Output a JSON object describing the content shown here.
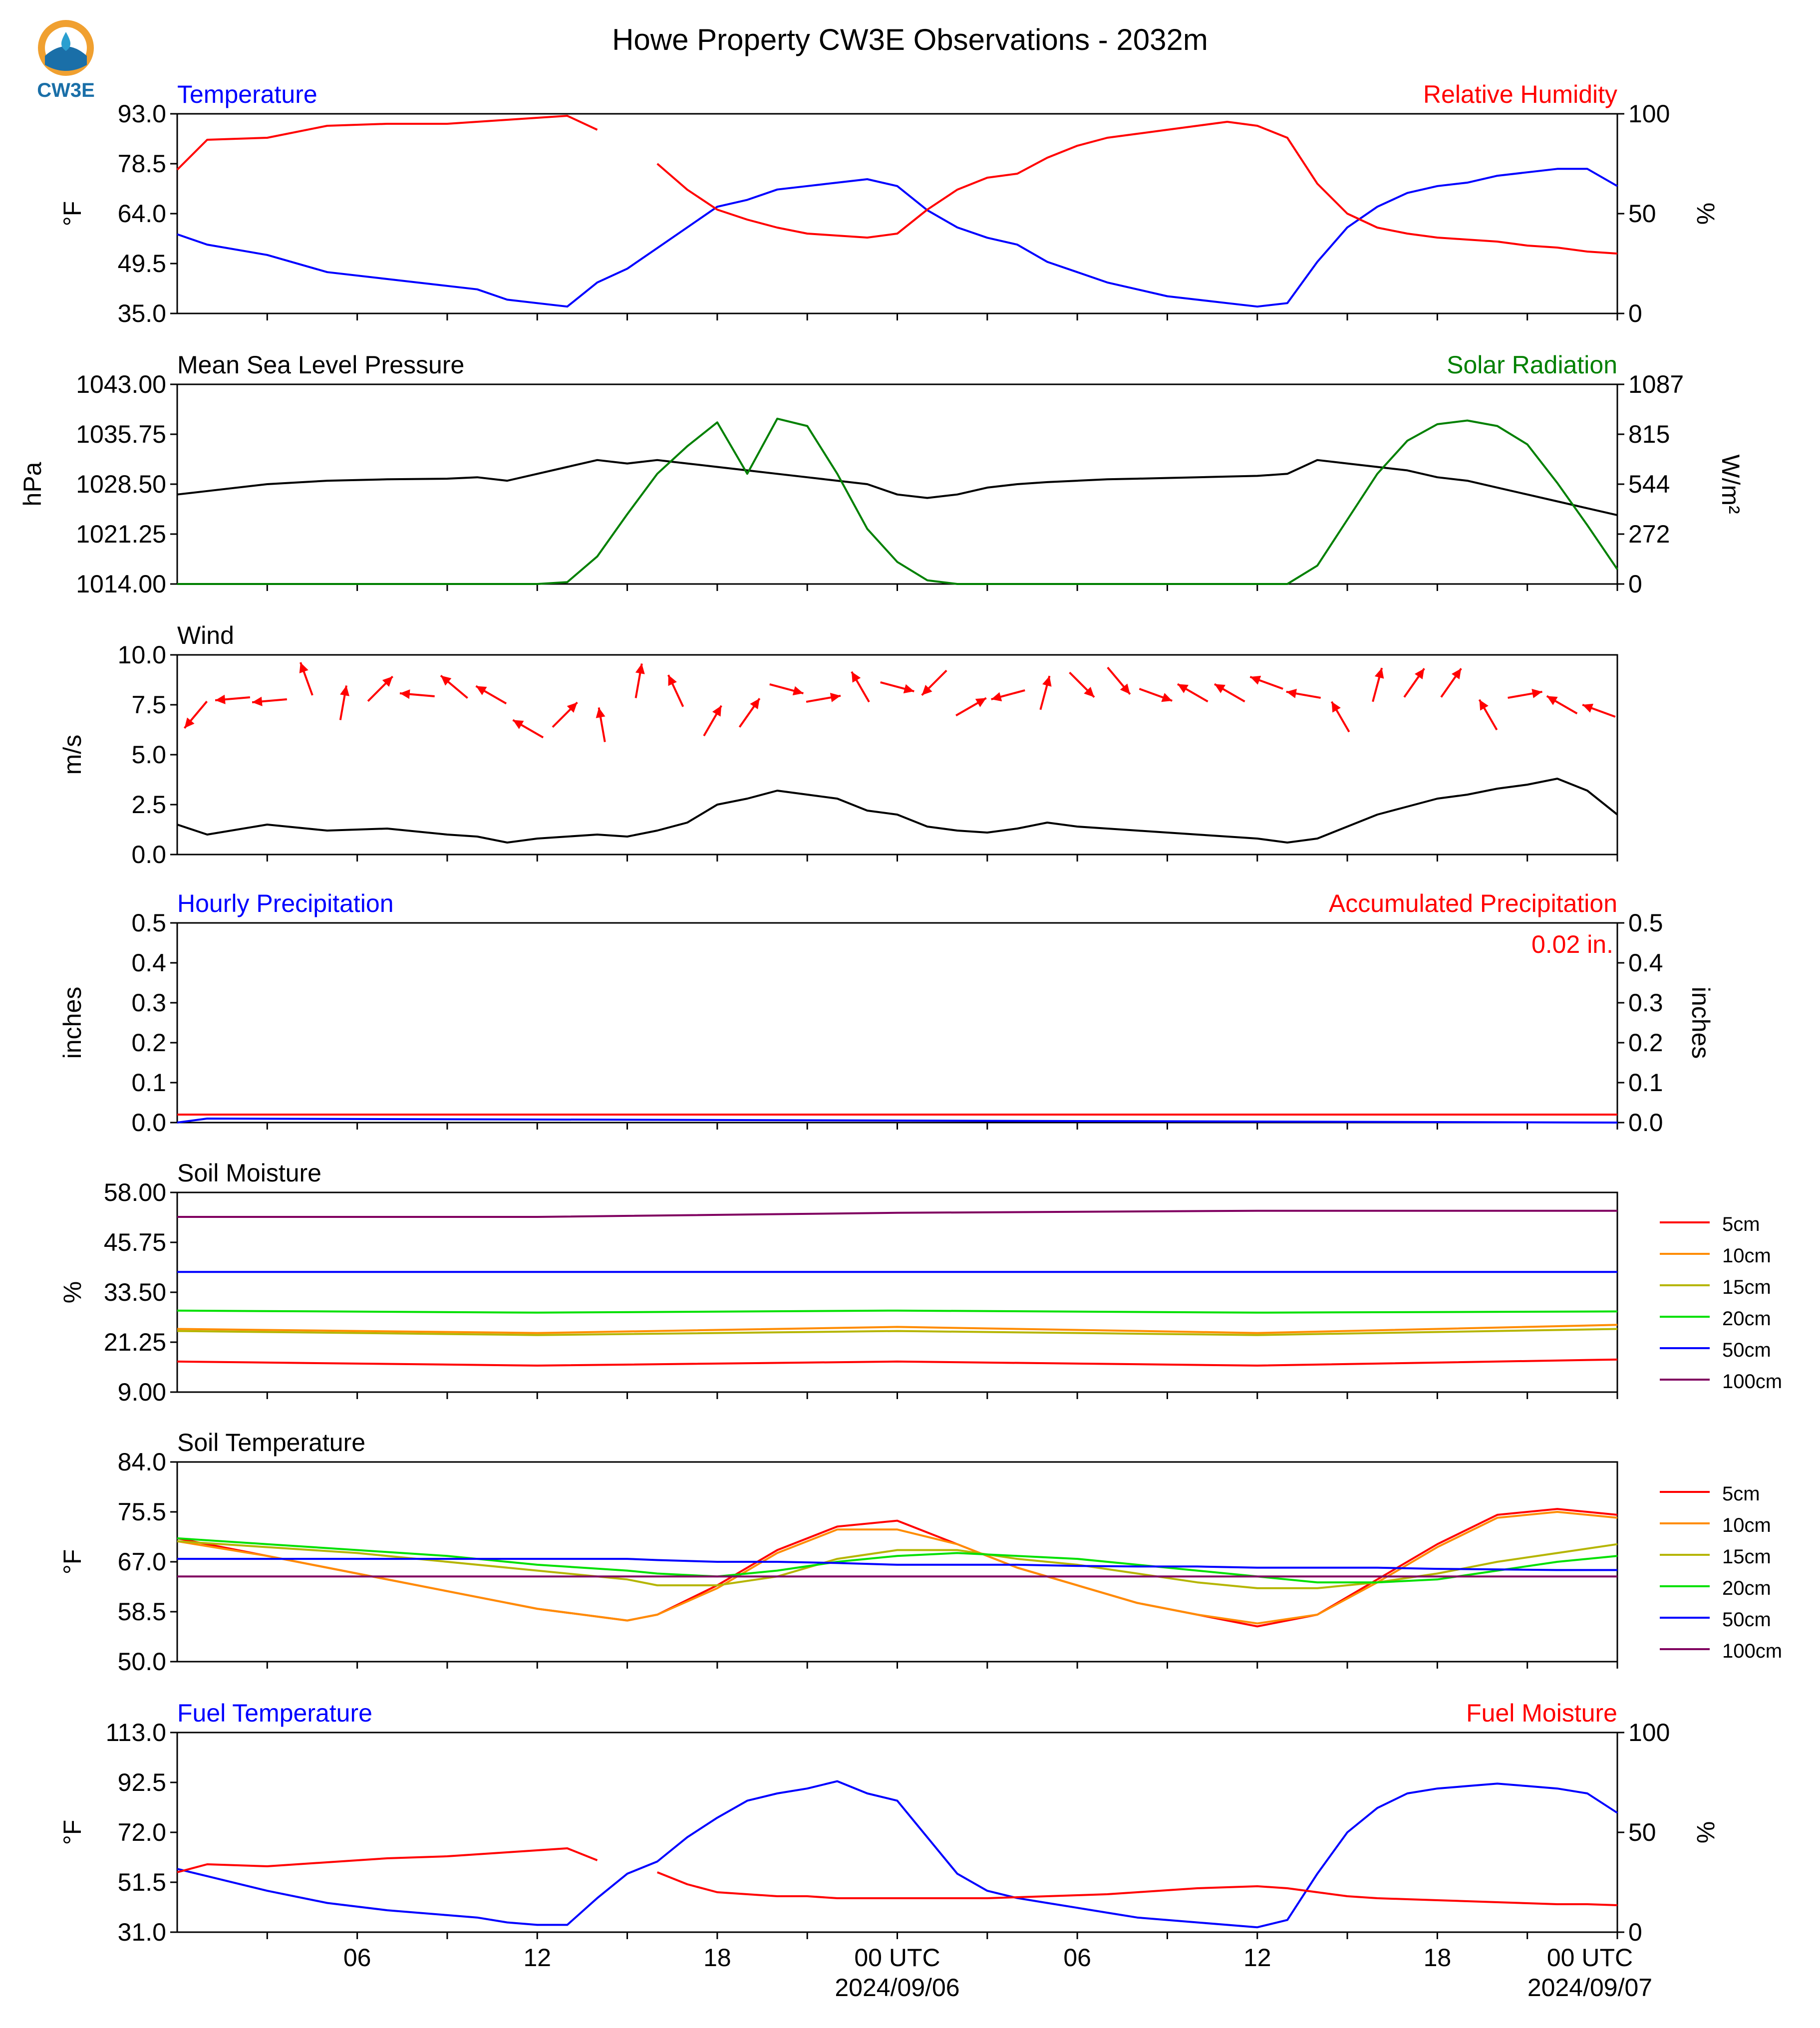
{
  "title": "Howe Property CW3E Observations - 2032m",
  "logo": {
    "text": "CW3E",
    "colors": {
      "orange": "#f0a030",
      "blue": "#1a6fa8",
      "teal": "#2a9fd0"
    }
  },
  "colors": {
    "blue": "#0000ff",
    "red": "#ff0000",
    "black": "#000000",
    "green": "#008000"
  },
  "x_axis": {
    "tick_labels": [
      "06",
      "12",
      "18",
      "00 UTC",
      "06",
      "12",
      "18",
      "00 UTC"
    ],
    "date_labels": [
      "2024/09/06",
      "2024/09/07"
    ]
  },
  "chart_data": [
    {
      "type": "line",
      "panel": "temperature",
      "left_title": "Temperature",
      "right_title": "Relative Humidity",
      "ylabel": "°F",
      "y2label": "%",
      "ylim": [
        35.0,
        93.0
      ],
      "y2lim": [
        0,
        100
      ],
      "yticks": [
        "35.0",
        "49.5",
        "64.0",
        "78.5",
        "93.0"
      ],
      "y2ticks": [
        "0",
        "50",
        "100"
      ],
      "x_hours": [
        0,
        1,
        3,
        5,
        7,
        9,
        10,
        11,
        12,
        13,
        14,
        15,
        16,
        17,
        18,
        19,
        20,
        21,
        22,
        23,
        24,
        25,
        26,
        27,
        28,
        29,
        30,
        31,
        32,
        33,
        34,
        35,
        36,
        37,
        38,
        39,
        40,
        41,
        42,
        43,
        44,
        45,
        46,
        47,
        48
      ],
      "series": [
        {
          "color": "#0000ff",
          "axis": "left",
          "values": [
            58,
            55,
            52,
            47,
            45,
            43,
            42,
            39,
            38,
            37,
            44,
            48,
            54,
            60,
            66,
            68,
            71,
            72,
            73,
            74,
            72,
            65,
            60,
            57,
            55,
            50,
            47,
            44,
            42,
            40,
            39,
            38,
            37,
            38,
            50,
            60,
            66,
            70,
            72,
            73,
            75,
            76,
            77,
            77,
            72
          ]
        },
        {
          "color": "#ff0000",
          "axis": "right",
          "values": [
            72,
            87,
            88,
            94,
            95,
            95,
            96,
            97,
            98,
            99,
            92,
            null,
            75,
            62,
            52,
            47,
            43,
            40,
            39,
            38,
            40,
            52,
            62,
            68,
            70,
            78,
            84,
            88,
            90,
            92,
            94,
            96,
            94,
            88,
            65,
            50,
            43,
            40,
            38,
            37,
            36,
            34,
            33,
            31,
            30
          ]
        }
      ]
    },
    {
      "type": "line",
      "panel": "pressure",
      "left_title": "Mean Sea Level Pressure",
      "right_title": "Solar Radiation",
      "ylabel": "hPa",
      "y2label": "W/m²",
      "ylim": [
        1014.0,
        1043.0
      ],
      "y2lim": [
        0,
        1087
      ],
      "yticks": [
        "1014.00",
        "1021.25",
        "1028.50",
        "1035.75",
        "1043.00"
      ],
      "y2ticks": [
        "0",
        "272",
        "544",
        "815",
        "1087"
      ],
      "x_hours": [
        0,
        1,
        3,
        5,
        7,
        9,
        10,
        11,
        12,
        13,
        14,
        15,
        16,
        17,
        18,
        19,
        20,
        21,
        22,
        23,
        24,
        25,
        26,
        27,
        28,
        29,
        30,
        31,
        32,
        33,
        34,
        35,
        36,
        37,
        38,
        39,
        40,
        41,
        42,
        43,
        44,
        45,
        46,
        47,
        48
      ],
      "series": [
        {
          "color": "#000000",
          "axis": "left",
          "values": [
            1027.0,
            1027.5,
            1028.5,
            1029.0,
            1029.2,
            1029.3,
            1029.5,
            1029.0,
            1030.0,
            1031.0,
            1032.0,
            1031.5,
            1032.0,
            1031.5,
            1031.0,
            1030.5,
            1030.0,
            1029.5,
            1029.0,
            1028.5,
            1027.0,
            1026.5,
            1027.0,
            1028.0,
            1028.5,
            1028.8,
            1029.0,
            1029.2,
            1029.3,
            1029.4,
            1029.5,
            1029.6,
            1029.7,
            1030.0,
            1032.0,
            1031.5,
            1031.0,
            1030.5,
            1029.5,
            1029.0,
            1028.0,
            1027.0,
            1026.0,
            1025.0,
            1024.0
          ]
        },
        {
          "color": "#008000",
          "axis": "right",
          "values": [
            0,
            0,
            0,
            0,
            0,
            0,
            0,
            0,
            0,
            10,
            150,
            380,
            600,
            750,
            880,
            600,
            900,
            860,
            600,
            300,
            120,
            20,
            0,
            0,
            0,
            0,
            0,
            0,
            0,
            0,
            0,
            0,
            0,
            0,
            100,
            350,
            600,
            780,
            870,
            890,
            860,
            760,
            550,
            320,
            80
          ]
        }
      ]
    },
    {
      "type": "line",
      "panel": "wind",
      "left_title": "Wind",
      "ylabel": "m/s",
      "ylim": [
        0.0,
        10.0
      ],
      "yticks": [
        "0.0",
        "2.5",
        "5.0",
        "7.5",
        "10.0"
      ],
      "x_hours": [
        0,
        1,
        3,
        5,
        7,
        9,
        10,
        11,
        12,
        13,
        14,
        15,
        16,
        17,
        18,
        19,
        20,
        21,
        22,
        23,
        24,
        25,
        26,
        27,
        28,
        29,
        30,
        31,
        32,
        33,
        34,
        35,
        36,
        37,
        38,
        39,
        40,
        41,
        42,
        43,
        44,
        45,
        46,
        47,
        48
      ],
      "series": [
        {
          "color": "#000000",
          "axis": "left",
          "values": [
            1.5,
            1.0,
            1.5,
            1.2,
            1.3,
            1.0,
            0.9,
            0.6,
            0.8,
            0.9,
            1.0,
            0.9,
            1.2,
            1.6,
            2.5,
            2.8,
            3.2,
            3.0,
            2.8,
            2.2,
            2.0,
            1.4,
            1.2,
            1.1,
            1.3,
            1.6,
            1.4,
            1.3,
            1.2,
            1.1,
            1.0,
            0.9,
            0.8,
            0.6,
            0.8,
            1.4,
            2.0,
            2.4,
            2.8,
            3.0,
            3.3,
            3.5,
            3.8,
            3.2,
            2.0
          ]
        }
      ],
      "barbs": {
        "color": "#ff0000",
        "speed_ms": [
          7.0,
          7.8,
          7.7,
          8.8,
          7.6,
          8.3,
          8.0,
          8.4,
          8.0,
          6.3,
          7.0,
          6.5,
          8.7,
          8.2,
          6.7,
          7.1,
          8.3,
          7.8,
          8.4,
          8.4,
          8.6,
          7.4,
          8.0,
          8.1,
          8.5,
          8.7,
          8.0,
          8.1,
          8.1,
          8.6,
          8.0,
          6.9,
          8.5,
          8.6,
          8.6,
          7.0,
          8.0,
          7.5,
          7.2
        ],
        "direction_deg": [
          220,
          265,
          265,
          340,
          10,
          45,
          275,
          310,
          300,
          300,
          45,
          350,
          10,
          335,
          30,
          35,
          105,
          80,
          330,
          105,
          225,
          60,
          255,
          15,
          135,
          140,
          110,
          300,
          300,
          290,
          280,
          330,
          15,
          35,
          35,
          330,
          80,
          300,
          290
        ]
      }
    },
    {
      "type": "line",
      "panel": "precipitation",
      "left_title": "Hourly Precipitation",
      "right_title": "Accumulated Precipitation",
      "annotation": "0.02 in.",
      "ylabel": "inches",
      "y2label": "inches",
      "ylim": [
        0.0,
        0.5
      ],
      "y2lim": [
        0.0,
        0.5
      ],
      "yticks": [
        "0.0",
        "0.1",
        "0.2",
        "0.3",
        "0.4",
        "0.5"
      ],
      "y2ticks": [
        "0.0",
        "0.1",
        "0.2",
        "0.3",
        "0.4",
        "0.5"
      ],
      "x_hours": [
        0,
        1,
        48
      ],
      "series": [
        {
          "color": "#ff0000",
          "axis": "right",
          "values": [
            0.02,
            0.02,
            0.02
          ]
        },
        {
          "color": "#0000ff",
          "axis": "left",
          "values": [
            0.0,
            0.01,
            0.0
          ]
        }
      ]
    },
    {
      "type": "line",
      "panel": "soil_moisture",
      "left_title": "Soil Moisture",
      "ylabel": "%",
      "ylim": [
        9.0,
        58.0
      ],
      "yticks": [
        "9.00",
        "21.25",
        "33.50",
        "45.75",
        "58.00"
      ],
      "legend": "right",
      "x_hours": [
        0,
        12,
        24,
        36,
        48
      ],
      "series": [
        {
          "name": "5cm",
          "color": "#ff0000",
          "values": [
            16.5,
            15.5,
            16.5,
            15.5,
            17.0
          ]
        },
        {
          "name": "10cm",
          "color": "#ff8c00",
          "values": [
            24.5,
            23.5,
            25.0,
            23.5,
            25.5
          ]
        },
        {
          "name": "15cm",
          "color": "#b5b500",
          "values": [
            24.0,
            23.0,
            24.0,
            23.0,
            24.5
          ]
        },
        {
          "name": "20cm",
          "color": "#00e000",
          "values": [
            29.0,
            28.5,
            29.0,
            28.5,
            28.8
          ]
        },
        {
          "name": "50cm",
          "color": "#0000ff",
          "values": [
            38.5,
            38.5,
            38.5,
            38.5,
            38.5
          ]
        },
        {
          "name": "100cm",
          "color": "#800060",
          "values": [
            52.0,
            52.0,
            53.0,
            53.5,
            53.5
          ]
        }
      ]
    },
    {
      "type": "line",
      "panel": "soil_temperature",
      "left_title": "Soil Temperature",
      "ylabel": "°F",
      "ylim": [
        50.0,
        84.0
      ],
      "yticks": [
        "50.0",
        "58.5",
        "67.0",
        "75.5",
        "84.0"
      ],
      "legend": "right",
      "x_hours": [
        0,
        3,
        6,
        9,
        12,
        15,
        16,
        18,
        20,
        22,
        24,
        26,
        28,
        30,
        32,
        34,
        36,
        38,
        40,
        42,
        44,
        46,
        48
      ],
      "series": [
        {
          "name": "5cm",
          "color": "#ff0000",
          "values": [
            71,
            68,
            65,
            62,
            59,
            57,
            58,
            63,
            69,
            73,
            74,
            70,
            66,
            63,
            60,
            58,
            56,
            58,
            64,
            70,
            75,
            76,
            75
          ]
        },
        {
          "name": "10cm",
          "color": "#ff8c00",
          "values": [
            70.5,
            68,
            65,
            62,
            59,
            57,
            58,
            62.5,
            68.5,
            72.5,
            72.5,
            70,
            66,
            63,
            60,
            58,
            56.5,
            58,
            63.5,
            69.5,
            74.5,
            75.5,
            74.5
          ]
        },
        {
          "name": "15cm",
          "color": "#b5b500",
          "values": [
            70.5,
            69.5,
            68.5,
            67,
            65.5,
            64,
            63,
            63,
            64.5,
            67.5,
            69,
            69,
            67.5,
            66.5,
            65,
            63.5,
            62.5,
            62.5,
            63.5,
            65,
            67,
            68.5,
            70
          ]
        },
        {
          "name": "20cm",
          "color": "#00e000",
          "values": [
            71,
            70,
            69,
            68,
            66.5,
            65.5,
            65,
            64.5,
            65.5,
            67,
            68,
            68.5,
            68,
            67.5,
            66.5,
            65.5,
            64.5,
            63.5,
            63.5,
            64,
            65.5,
            67,
            68
          ]
        },
        {
          "name": "50cm",
          "color": "#0000ff",
          "values": [
            67.5,
            67.5,
            67.5,
            67.5,
            67.5,
            67.5,
            67.3,
            67,
            67,
            66.8,
            66.5,
            66.5,
            66.5,
            66.3,
            66.2,
            66.2,
            66,
            66,
            66,
            65.8,
            65.7,
            65.6,
            65.6
          ]
        },
        {
          "name": "100cm",
          "color": "#800060",
          "values": [
            64.5,
            64.5,
            64.5,
            64.5,
            64.5,
            64.5,
            64.5,
            64.5,
            64.5,
            64.5,
            64.5,
            64.5,
            64.5,
            64.5,
            64.5,
            64.5,
            64.5,
            64.5,
            64.5,
            64.5,
            64.5,
            64.5,
            64.5
          ]
        }
      ]
    },
    {
      "type": "line",
      "panel": "fuel",
      "left_title": "Fuel Temperature",
      "right_title": "Fuel Moisture",
      "ylabel": "°F",
      "y2label": "%",
      "ylim": [
        31.0,
        113.0
      ],
      "y2lim": [
        0,
        100
      ],
      "yticks": [
        "31.0",
        "51.5",
        "72.0",
        "92.5",
        "113.0"
      ],
      "y2ticks": [
        "0",
        "50",
        "100"
      ],
      "x_hours": [
        0,
        1,
        3,
        5,
        7,
        9,
        10,
        11,
        12,
        13,
        14,
        15,
        16,
        17,
        18,
        19,
        20,
        21,
        22,
        23,
        24,
        25,
        26,
        27,
        28,
        29,
        30,
        31,
        32,
        33,
        34,
        35,
        36,
        37,
        38,
        39,
        40,
        41,
        42,
        43,
        44,
        45,
        46,
        47,
        48
      ],
      "series": [
        {
          "color": "#0000ff",
          "axis": "left",
          "values": [
            57,
            54,
            48,
            43,
            40,
            38,
            37,
            35,
            34,
            34,
            45,
            55,
            60,
            70,
            78,
            85,
            88,
            90,
            93,
            88,
            85,
            70,
            55,
            48,
            45,
            43,
            41,
            39,
            37,
            36,
            35,
            34,
            33,
            36,
            55,
            72,
            82,
            88,
            90,
            91,
            92,
            91,
            90,
            88,
            80
          ]
        },
        {
          "color": "#ff0000",
          "axis": "right",
          "values": [
            30,
            34,
            33,
            35,
            37,
            38,
            39,
            40,
            41,
            42,
            36,
            null,
            30,
            24,
            20,
            19,
            18,
            18,
            17,
            17,
            17,
            17,
            17,
            17,
            17.5,
            18,
            18.5,
            19,
            20,
            21,
            22,
            22.5,
            23,
            22,
            20,
            18,
            17,
            16.5,
            16,
            15.5,
            15,
            14.5,
            14,
            14,
            13.5
          ]
        }
      ]
    }
  ]
}
